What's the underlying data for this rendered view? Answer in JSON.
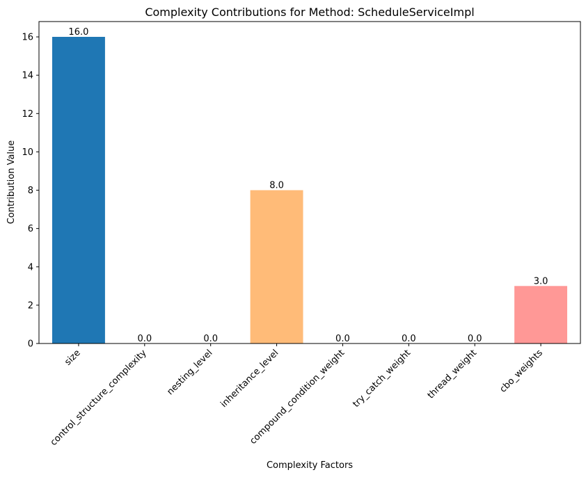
{
  "chart_data": {
    "type": "bar",
    "title": "Complexity Contributions for Method: ScheduleServiceImpl",
    "xlabel": "Complexity Factors",
    "ylabel": "Contribution Value",
    "categories": [
      "size",
      "control_structure_complexity",
      "nesting_level",
      "inheritance_level",
      "compound_condition_weight",
      "try_catch_weight",
      "thread_weight",
      "cbo_weights"
    ],
    "values": [
      16.0,
      0.0,
      0.0,
      8.0,
      0.0,
      0.0,
      0.0,
      3.0
    ],
    "value_labels": [
      "16.0",
      "0.0",
      "0.0",
      "8.0",
      "0.0",
      "0.0",
      "0.0",
      "3.0"
    ],
    "bar_colors": [
      "#1f77b4",
      "#aec7e8",
      "#ff7f0e",
      "#ffbb78",
      "#2ca02c",
      "#98df8a",
      "#d62728",
      "#ff9896"
    ],
    "ylim": [
      0,
      16.8
    ],
    "yticks": [
      0,
      2,
      4,
      6,
      8,
      10,
      12,
      14,
      16
    ],
    "grid": false,
    "legend": "none"
  }
}
